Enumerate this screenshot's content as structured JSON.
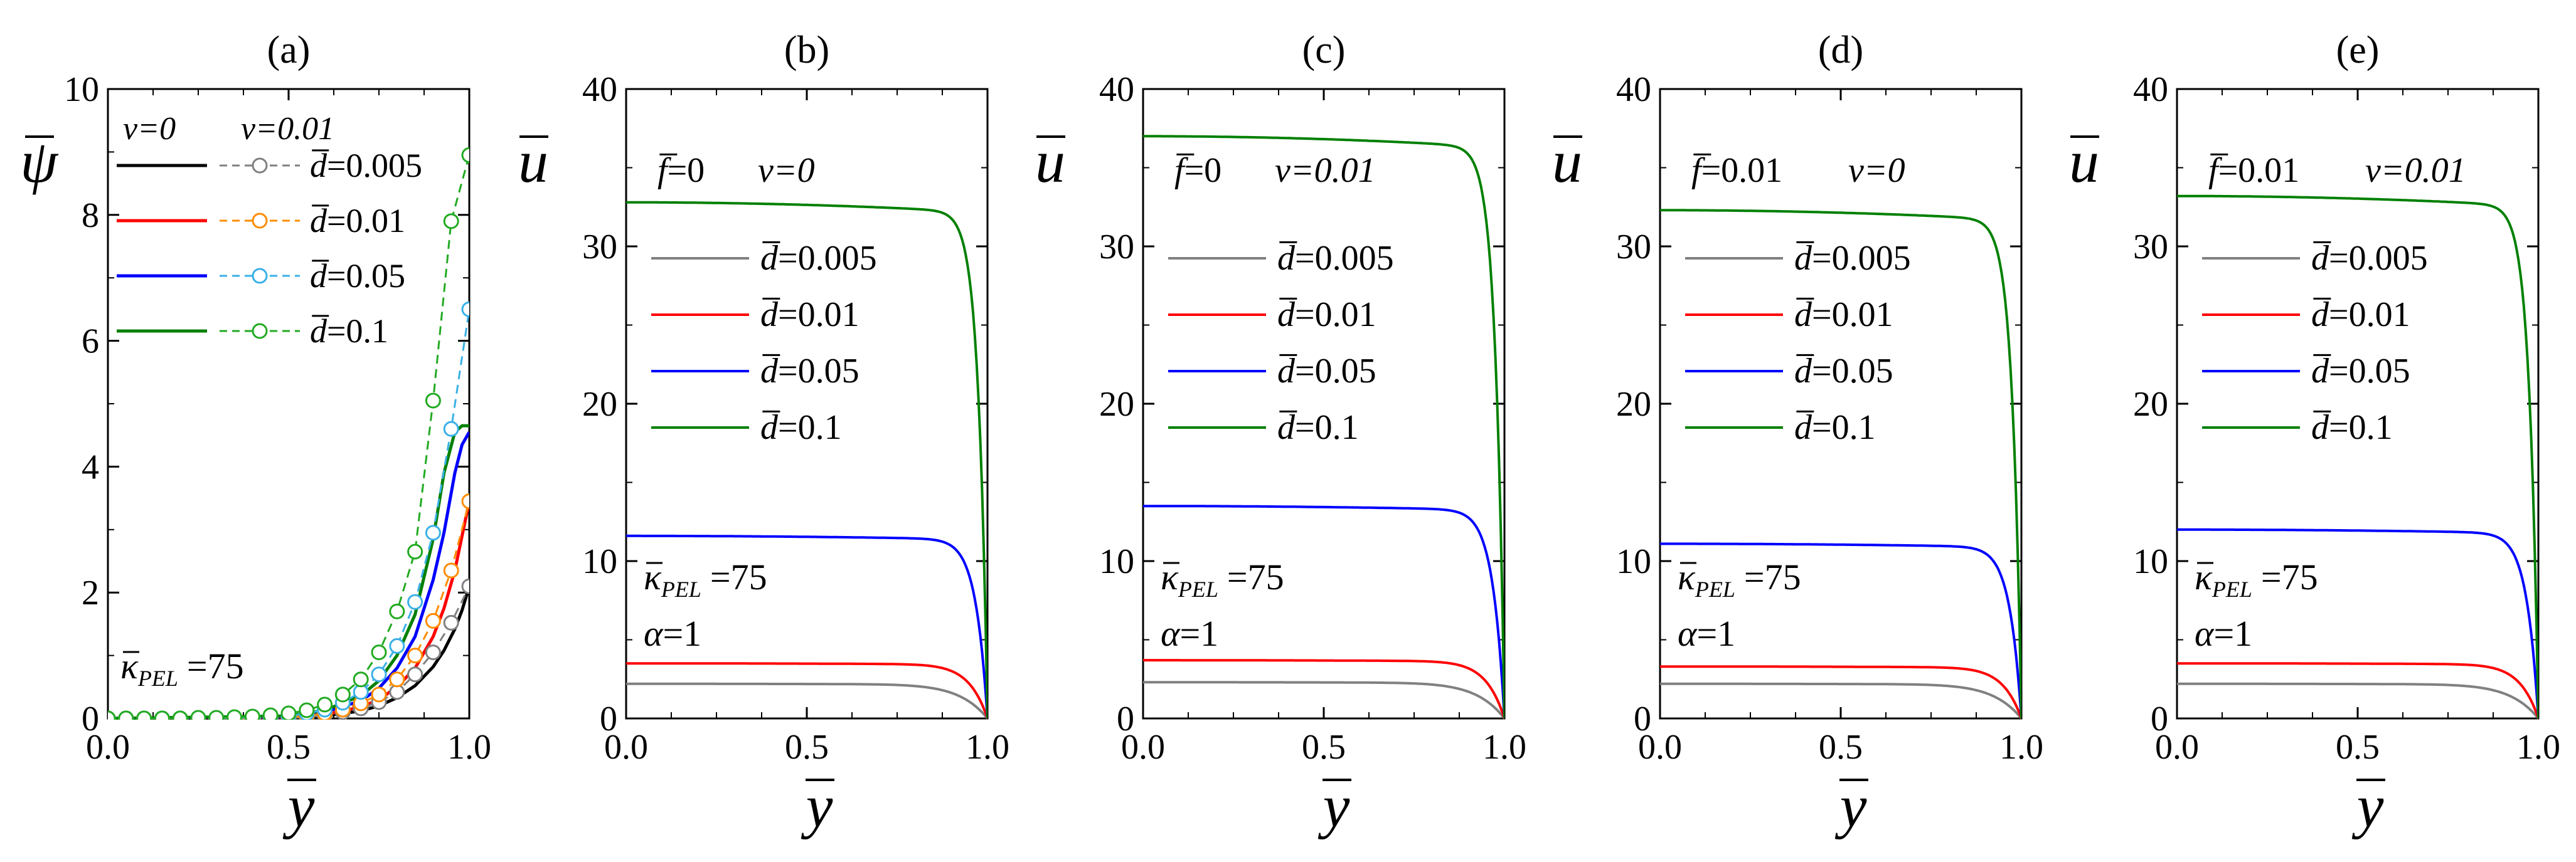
{
  "figure": {
    "ybar_label": "y",
    "kappa_symbol": "κ",
    "kappa_sub": "PEL",
    "kappa_value": "=75",
    "alpha_label": "α",
    "alpha_value": "=1",
    "nu_symbol": "ν",
    "f_symbol": "f",
    "d_symbol": "d",
    "u_symbol": "u",
    "psi_symbol": "ψ"
  },
  "colors": {
    "d0005": "#808080",
    "d001": "#ff0000",
    "d005": "#0000ff",
    "d01": "#008000",
    "open_grey": "#808080",
    "open_orange": "#ff8c00",
    "open_lightblue": "#3ab0e6",
    "open_green": "#22aa22"
  },
  "chart_data": [
    {
      "panel": "(a)",
      "type": "line",
      "title": "(a)",
      "xlabel": "y",
      "ylabel": "ψ",
      "xlim": [
        0,
        1.0
      ],
      "ylim": [
        0,
        10
      ],
      "xticks": [
        "0.0",
        "0.5",
        "1.0"
      ],
      "yticks": [
        "0",
        "2",
        "4",
        "6",
        "8",
        "10"
      ],
      "xtick_values": [
        0,
        0.5,
        1.0
      ],
      "ytick_values": [
        0,
        2,
        4,
        6,
        8,
        10
      ],
      "legend_header": {
        "nu0": "ν=0",
        "nu001": "ν=0.01"
      },
      "legend_entries": [
        "=0.005",
        "=0.01",
        "=0.05",
        "=0.1"
      ],
      "annotation": "κPEL =75",
      "series": [
        {
          "name": "ν=0, d=0.005",
          "style": "solid",
          "color": "#000000",
          "x": [
            0,
            0.5,
            0.6,
            0.7,
            0.75,
            0.8,
            0.85,
            0.9,
            0.93,
            0.96,
            0.98,
            1.0
          ],
          "y": [
            0,
            0.01,
            0.04,
            0.12,
            0.2,
            0.33,
            0.52,
            0.82,
            1.08,
            1.42,
            1.72,
            2.1
          ]
        },
        {
          "name": "ν=0, d=0.01",
          "style": "solid",
          "color": "#ff0000",
          "x": [
            0,
            0.5,
            0.6,
            0.7,
            0.75,
            0.8,
            0.85,
            0.9,
            0.93,
            0.96,
            0.98,
            1.0
          ],
          "y": [
            0,
            0.02,
            0.06,
            0.18,
            0.3,
            0.5,
            0.8,
            1.3,
            1.75,
            2.35,
            2.9,
            3.45
          ]
        },
        {
          "name": "ν=0, d=0.05",
          "style": "solid",
          "color": "#0000ff",
          "x": [
            0,
            0.5,
            0.6,
            0.7,
            0.75,
            0.8,
            0.85,
            0.9,
            0.93,
            0.96,
            0.98,
            1.0
          ],
          "y": [
            0,
            0.03,
            0.1,
            0.28,
            0.48,
            0.8,
            1.3,
            2.2,
            2.95,
            3.9,
            4.35,
            4.55
          ]
        },
        {
          "name": "ν=0, d=0.1",
          "style": "solid",
          "color": "#008000",
          "x": [
            0,
            0.5,
            0.6,
            0.7,
            0.75,
            0.8,
            0.85,
            0.9,
            0.93,
            0.96,
            0.98,
            1.0
          ],
          "y": [
            0,
            0.04,
            0.13,
            0.36,
            0.6,
            1.0,
            1.65,
            2.85,
            3.9,
            4.55,
            4.65,
            4.65
          ]
        },
        {
          "name": "ν=0.01, d=0.005",
          "style": "dashed",
          "color": "#808080",
          "x": [
            0,
            0.05,
            0.1,
            0.15,
            0.2,
            0.25,
            0.3,
            0.35,
            0.4,
            0.45,
            0.5,
            0.55,
            0.6,
            0.65,
            0.7,
            0.75,
            0.8,
            0.85,
            0.9,
            0.95,
            1.0
          ],
          "y": [
            0,
            0,
            0,
            0,
            0,
            0,
            0,
            0,
            0,
            0,
            0.01,
            0.02,
            0.05,
            0.1,
            0.16,
            0.26,
            0.42,
            0.7,
            1.05,
            1.52,
            2.1
          ]
        },
        {
          "name": "ν=0.01, d=0.01",
          "style": "dashed",
          "color": "#ff8c00",
          "x": [
            0,
            0.05,
            0.1,
            0.15,
            0.2,
            0.25,
            0.3,
            0.35,
            0.4,
            0.45,
            0.5,
            0.55,
            0.6,
            0.65,
            0.7,
            0.75,
            0.8,
            0.85,
            0.9,
            0.95,
            1.0
          ],
          "y": [
            0,
            0,
            0,
            0,
            0,
            0,
            0,
            0,
            0,
            0.01,
            0.02,
            0.04,
            0.08,
            0.14,
            0.24,
            0.38,
            0.62,
            1.0,
            1.55,
            2.35,
            3.45
          ]
        },
        {
          "name": "ν=0.01, d=0.05",
          "style": "dashed",
          "color": "#3ab0e6",
          "x": [
            0,
            0.05,
            0.1,
            0.15,
            0.2,
            0.25,
            0.3,
            0.35,
            0.4,
            0.45,
            0.5,
            0.55,
            0.6,
            0.65,
            0.7,
            0.75,
            0.8,
            0.85,
            0.9,
            0.95,
            1.0
          ],
          "y": [
            0,
            0,
            0,
            0,
            0,
            0,
            0,
            0.01,
            0.01,
            0.02,
            0.04,
            0.08,
            0.14,
            0.25,
            0.42,
            0.7,
            1.15,
            1.85,
            2.95,
            4.6,
            6.5
          ]
        },
        {
          "name": "ν=0.01, d=0.1",
          "style": "dashed",
          "color": "#22aa22",
          "x": [
            0,
            0.05,
            0.1,
            0.15,
            0.2,
            0.25,
            0.3,
            0.35,
            0.4,
            0.45,
            0.5,
            0.55,
            0.6,
            0.65,
            0.7,
            0.75,
            0.8,
            0.85,
            0.9,
            0.95,
            1.0
          ],
          "y": [
            0,
            0,
            0,
            0,
            0,
            0.01,
            0.01,
            0.02,
            0.03,
            0.05,
            0.08,
            0.13,
            0.22,
            0.38,
            0.62,
            1.05,
            1.7,
            2.65,
            5.05,
            7.9,
            8.95
          ]
        }
      ]
    },
    {
      "panel": "(b)",
      "type": "line",
      "title": "(b)",
      "xlabel": "y",
      "ylabel": "u",
      "xlim": [
        0,
        1.0
      ],
      "ylim": [
        0,
        40
      ],
      "xticks": [
        "0.0",
        "0.5",
        "1.0"
      ],
      "yticks": [
        "0",
        "10",
        "20",
        "30",
        "40"
      ],
      "xtick_values": [
        0,
        0.5,
        1.0
      ],
      "ytick_values": [
        0,
        10,
        20,
        30,
        40
      ],
      "params": {
        "f": "=0",
        "nu": "ν=0"
      },
      "legend_entries": [
        "=0.005",
        "=0.01",
        "=0.05",
        "=0.1"
      ],
      "annotation": [
        "κPEL =75",
        "α=1"
      ],
      "series": [
        {
          "name": "d=0.005",
          "color": "#808080",
          "plateau": 2.2
        },
        {
          "name": "d=0.01",
          "color": "#ff0000",
          "plateau": 3.5
        },
        {
          "name": "d=0.05",
          "color": "#0000ff",
          "plateau": 11.6
        },
        {
          "name": "d=0.1",
          "color": "#008000",
          "plateau": 32.8
        }
      ]
    },
    {
      "panel": "(c)",
      "type": "line",
      "title": "(c)",
      "xlabel": "y",
      "ylabel": "u",
      "xlim": [
        0,
        1.0
      ],
      "ylim": [
        0,
        40
      ],
      "xticks": [
        "0.0",
        "0.5",
        "1.0"
      ],
      "yticks": [
        "0",
        "10",
        "20",
        "30",
        "40"
      ],
      "xtick_values": [
        0,
        0.5,
        1.0
      ],
      "ytick_values": [
        0,
        10,
        20,
        30,
        40
      ],
      "params": {
        "f": "=0",
        "nu": "ν=0.01"
      },
      "legend_entries": [
        "=0.005",
        "=0.01",
        "=0.05",
        "=0.1"
      ],
      "annotation": [
        "κPEL =75",
        "α=1"
      ],
      "series": [
        {
          "name": "d=0.005",
          "color": "#808080",
          "plateau": 2.3
        },
        {
          "name": "d=0.01",
          "color": "#ff0000",
          "plateau": 3.7
        },
        {
          "name": "d=0.05",
          "color": "#0000ff",
          "plateau": 13.5
        },
        {
          "name": "d=0.1",
          "color": "#008000",
          "plateau": 37.0
        }
      ]
    },
    {
      "panel": "(d)",
      "type": "line",
      "title": "(d)",
      "xlabel": "y",
      "ylabel": "u",
      "xlim": [
        0,
        1.0
      ],
      "ylim": [
        0,
        40
      ],
      "xticks": [
        "0.0",
        "0.5",
        "1.0"
      ],
      "yticks": [
        "0",
        "10",
        "20",
        "30",
        "40"
      ],
      "xtick_values": [
        0,
        0.5,
        1.0
      ],
      "ytick_values": [
        0,
        10,
        20,
        30,
        40
      ],
      "params": {
        "f": "=0.01",
        "nu": "ν=0"
      },
      "legend_entries": [
        "=0.005",
        "=0.01",
        "=0.05",
        "=0.1"
      ],
      "annotation": [
        "κPEL =75",
        "α=1"
      ],
      "series": [
        {
          "name": "d=0.005",
          "color": "#808080",
          "plateau": 2.2
        },
        {
          "name": "d=0.01",
          "color": "#ff0000",
          "plateau": 3.3
        },
        {
          "name": "d=0.05",
          "color": "#0000ff",
          "plateau": 11.1
        },
        {
          "name": "d=0.1",
          "color": "#008000",
          "plateau": 32.3
        }
      ]
    },
    {
      "panel": "(e)",
      "type": "line",
      "title": "(e)",
      "xlabel": "y",
      "ylabel": "u",
      "xlim": [
        0,
        1.0
      ],
      "ylim": [
        0,
        40
      ],
      "xticks": [
        "0.0",
        "0.5",
        "1.0"
      ],
      "yticks": [
        "0",
        "10",
        "20",
        "30",
        "40"
      ],
      "xtick_values": [
        0,
        0.5,
        1.0
      ],
      "ytick_values": [
        0,
        10,
        20,
        30,
        40
      ],
      "params": {
        "f": "=0.01",
        "nu": "ν=0.01"
      },
      "legend_entries": [
        "=0.005",
        "=0.01",
        "=0.05",
        "=0.1"
      ],
      "annotation": [
        "κPEL =75",
        "α=1"
      ],
      "series": [
        {
          "name": "d=0.005",
          "color": "#808080",
          "plateau": 2.2
        },
        {
          "name": "d=0.01",
          "color": "#ff0000",
          "plateau": 3.5
        },
        {
          "name": "d=0.05",
          "color": "#0000ff",
          "plateau": 12.0
        },
        {
          "name": "d=0.1",
          "color": "#008000",
          "plateau": 33.2
        }
      ]
    }
  ]
}
